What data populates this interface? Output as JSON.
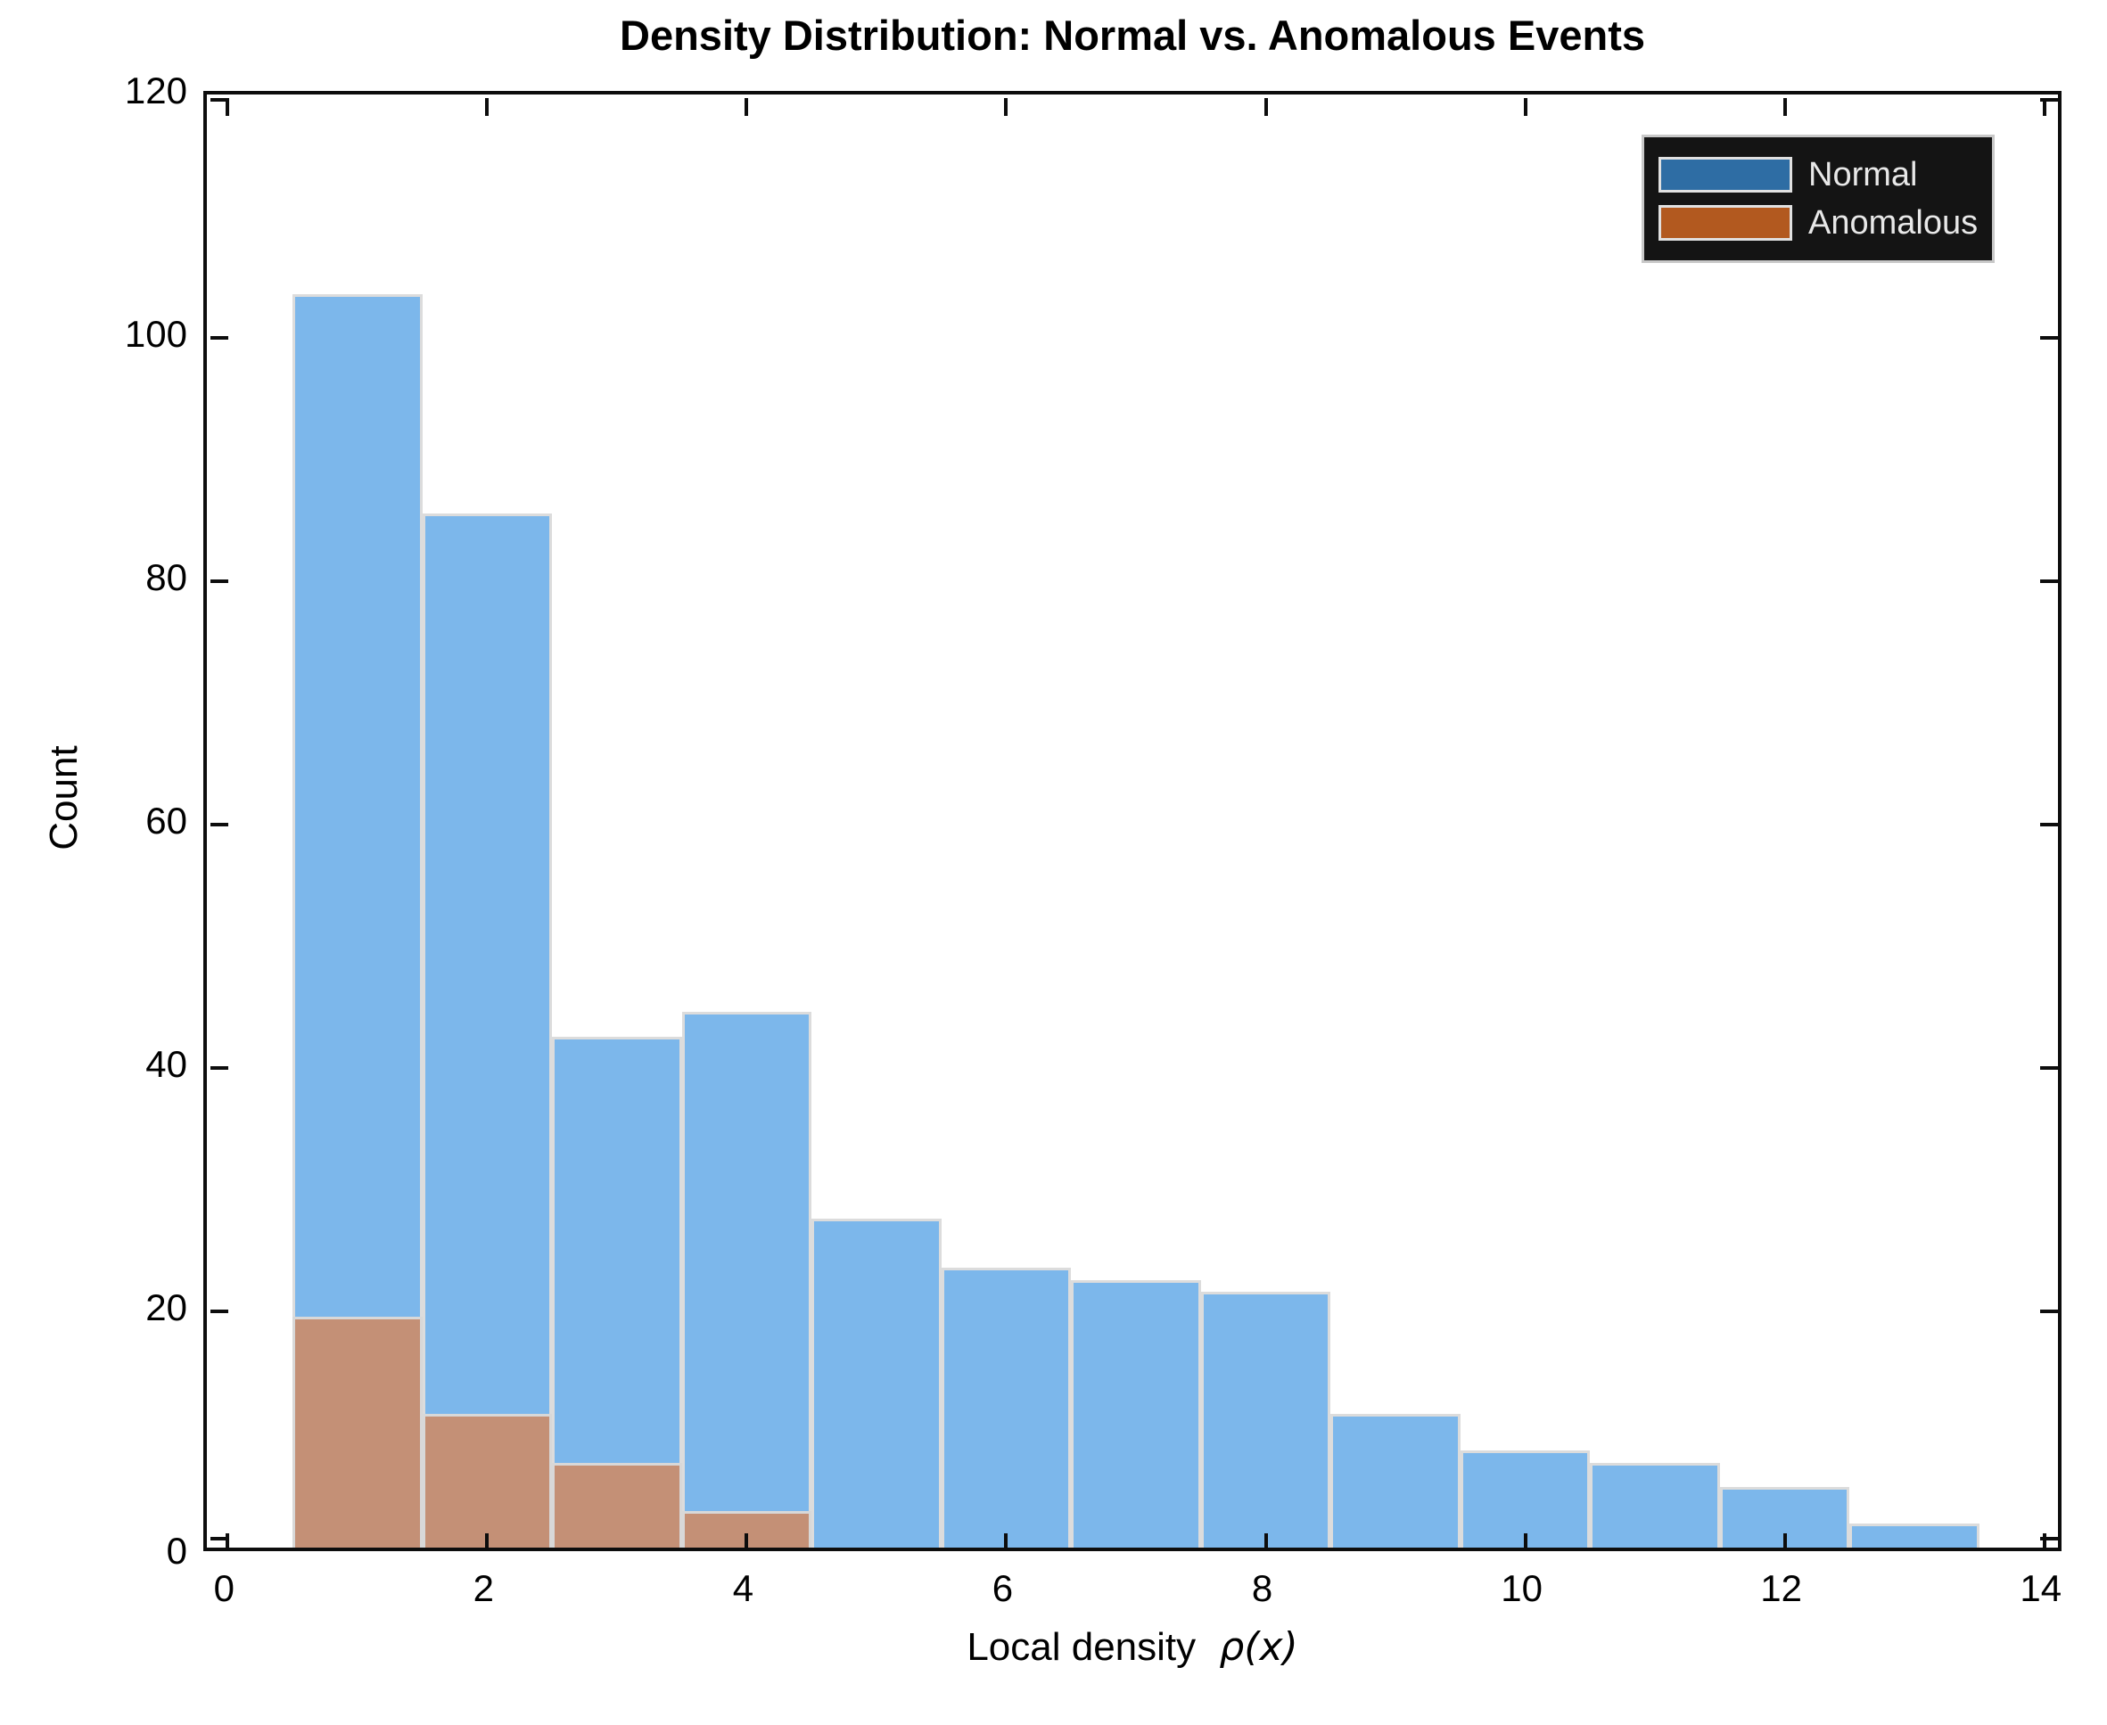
{
  "figure": {
    "title": "Density Distribution: Normal vs. Anomalous Events"
  },
  "axes": {
    "xlabel_text": "Local density",
    "xlabel_math": "ρ(x)",
    "ylabel": "Count",
    "x_tick_labels": [
      "0",
      "2",
      "4",
      "6",
      "8",
      "10",
      "12",
      "14"
    ],
    "y_tick_labels": [
      "0",
      "20",
      "40",
      "60",
      "80",
      "100",
      "120"
    ]
  },
  "chart_data": {
    "type": "bar",
    "subtype": "overlaid-histogram",
    "title": "Density Distribution: Normal vs. Anomalous Events",
    "xlabel": "Local density ρ(x)",
    "ylabel": "Count",
    "bin_width": 1,
    "bin_edges": [
      0.5,
      1.5,
      2.5,
      3.5,
      4.5,
      5.5,
      6.5,
      7.5,
      8.5,
      9.5,
      10.5,
      11.5,
      12.5,
      13.5
    ],
    "bin_centers": [
      1,
      2,
      3,
      4,
      5,
      6,
      7,
      8,
      9,
      10,
      11,
      12,
      13
    ],
    "xlim": [
      -0.16,
      14.16
    ],
    "ylim": [
      0,
      120
    ],
    "x_major_ticks": [
      0,
      2,
      4,
      6,
      8,
      10,
      12,
      14
    ],
    "y_major_ticks": [
      0,
      20,
      40,
      60,
      80,
      100,
      120
    ],
    "grid": false,
    "box": true,
    "tick_direction": "in",
    "series": [
      {
        "name": "Normal",
        "values": [
          103,
          85,
          42,
          44,
          27,
          23,
          22,
          21,
          11,
          8,
          7,
          5,
          2
        ],
        "fill_color": "#7CB7EB",
        "legend_color": "#2E6DA4",
        "edge_color": "#DCDCDC"
      },
      {
        "name": "Anomalous",
        "values": [
          19,
          11,
          7,
          3,
          0,
          0,
          0,
          0,
          0,
          0,
          0,
          0,
          0
        ],
        "fill_color": "#C49076",
        "legend_color": "#B2591F",
        "edge_color": "#D8D8D8"
      }
    ],
    "legend": {
      "position": "top-right",
      "background": "#141414",
      "border_color": "#C8C8C8",
      "text_color": "#E8E8E8"
    }
  }
}
